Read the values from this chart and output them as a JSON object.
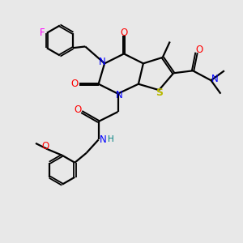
{
  "background_color": "#e8e8e8",
  "atom_colors": {
    "N": "#0000ff",
    "O": "#ff0000",
    "S": "#b8b800",
    "F": "#ff00ff",
    "H": "#008080",
    "C": "#000000"
  },
  "figsize": [
    3.0,
    3.0
  ],
  "dpi": 100
}
